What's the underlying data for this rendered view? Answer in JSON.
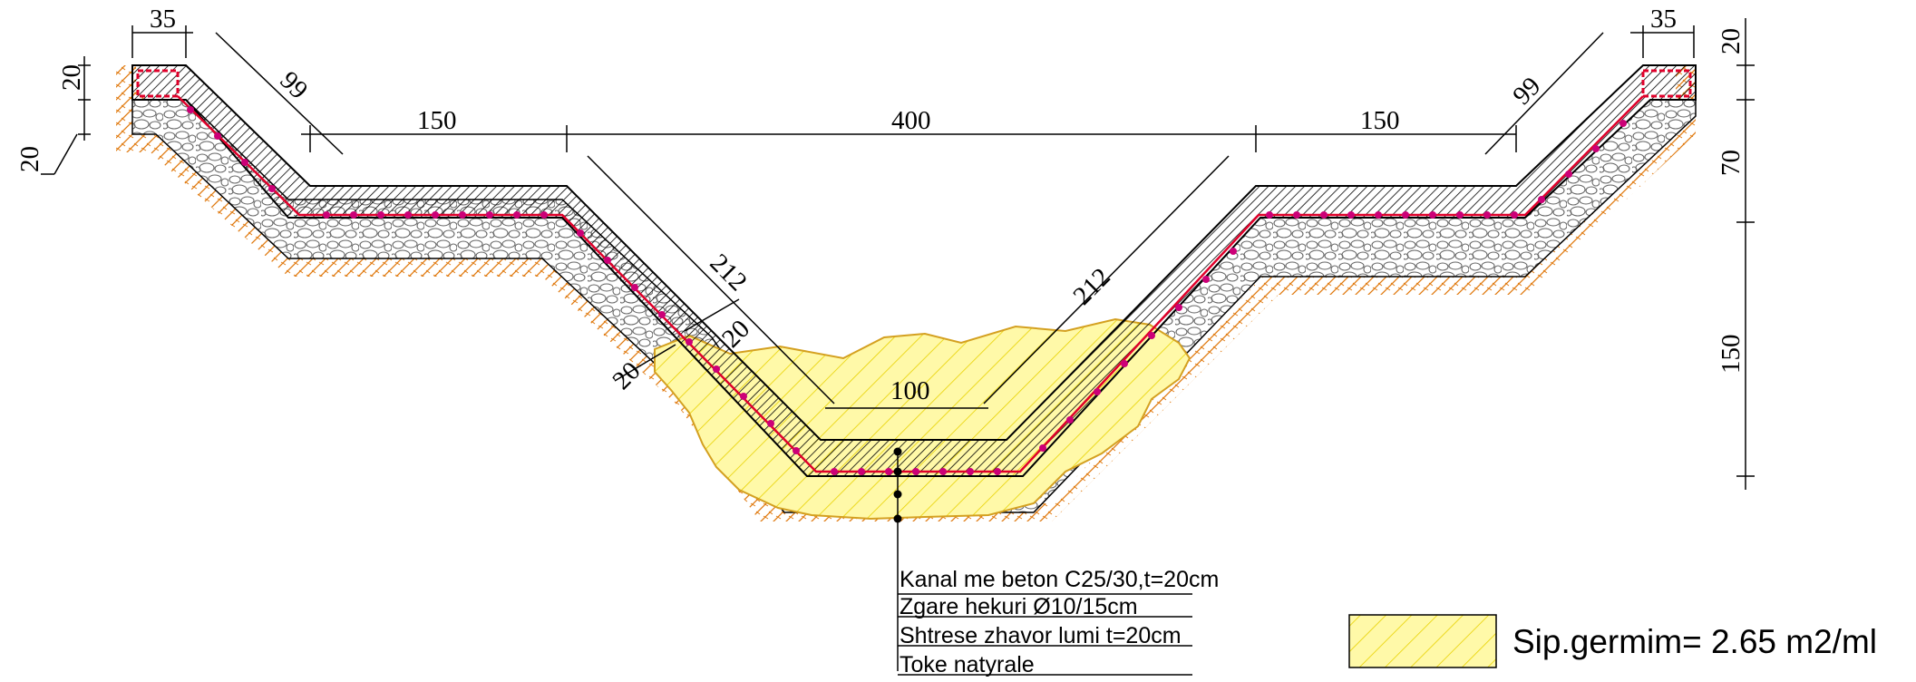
{
  "dimensions": {
    "top_width_left": "35",
    "top_width_right": "35",
    "slope_top_left": "99",
    "slope_top_right": "99",
    "bench_left": "150",
    "bench_right": "150",
    "overall_width": "400",
    "slope_bottom_left": "212",
    "slope_bottom_right": "212",
    "bottom_width": "100",
    "thickness_top_left": "20",
    "thickness_outer_left": "20",
    "thickness_slope_a": "20",
    "thickness_slope_b": "20",
    "height_top": "20",
    "height_upper": "70",
    "height_lower": "150"
  },
  "layers": [
    "Kanal me beton C25/30,t=20cm",
    "Zgare hekuri Ø10/15cm",
    "Shtrese zhavor lumi t=20cm",
    "Toke natyrale"
  ],
  "legend": {
    "label": "Sip.germim= 2.65 m2/ml"
  },
  "colors": {
    "concrete_hatch": "#000000",
    "rebar": "#cc0077",
    "rebar_line": "#e0002a",
    "gravel": "#777777",
    "soil_hatch": "#e07a10",
    "excavation_fill": "#fff9a8",
    "excavation_hatch": "#e8d200",
    "excavation_outline": "#d4a020"
  }
}
